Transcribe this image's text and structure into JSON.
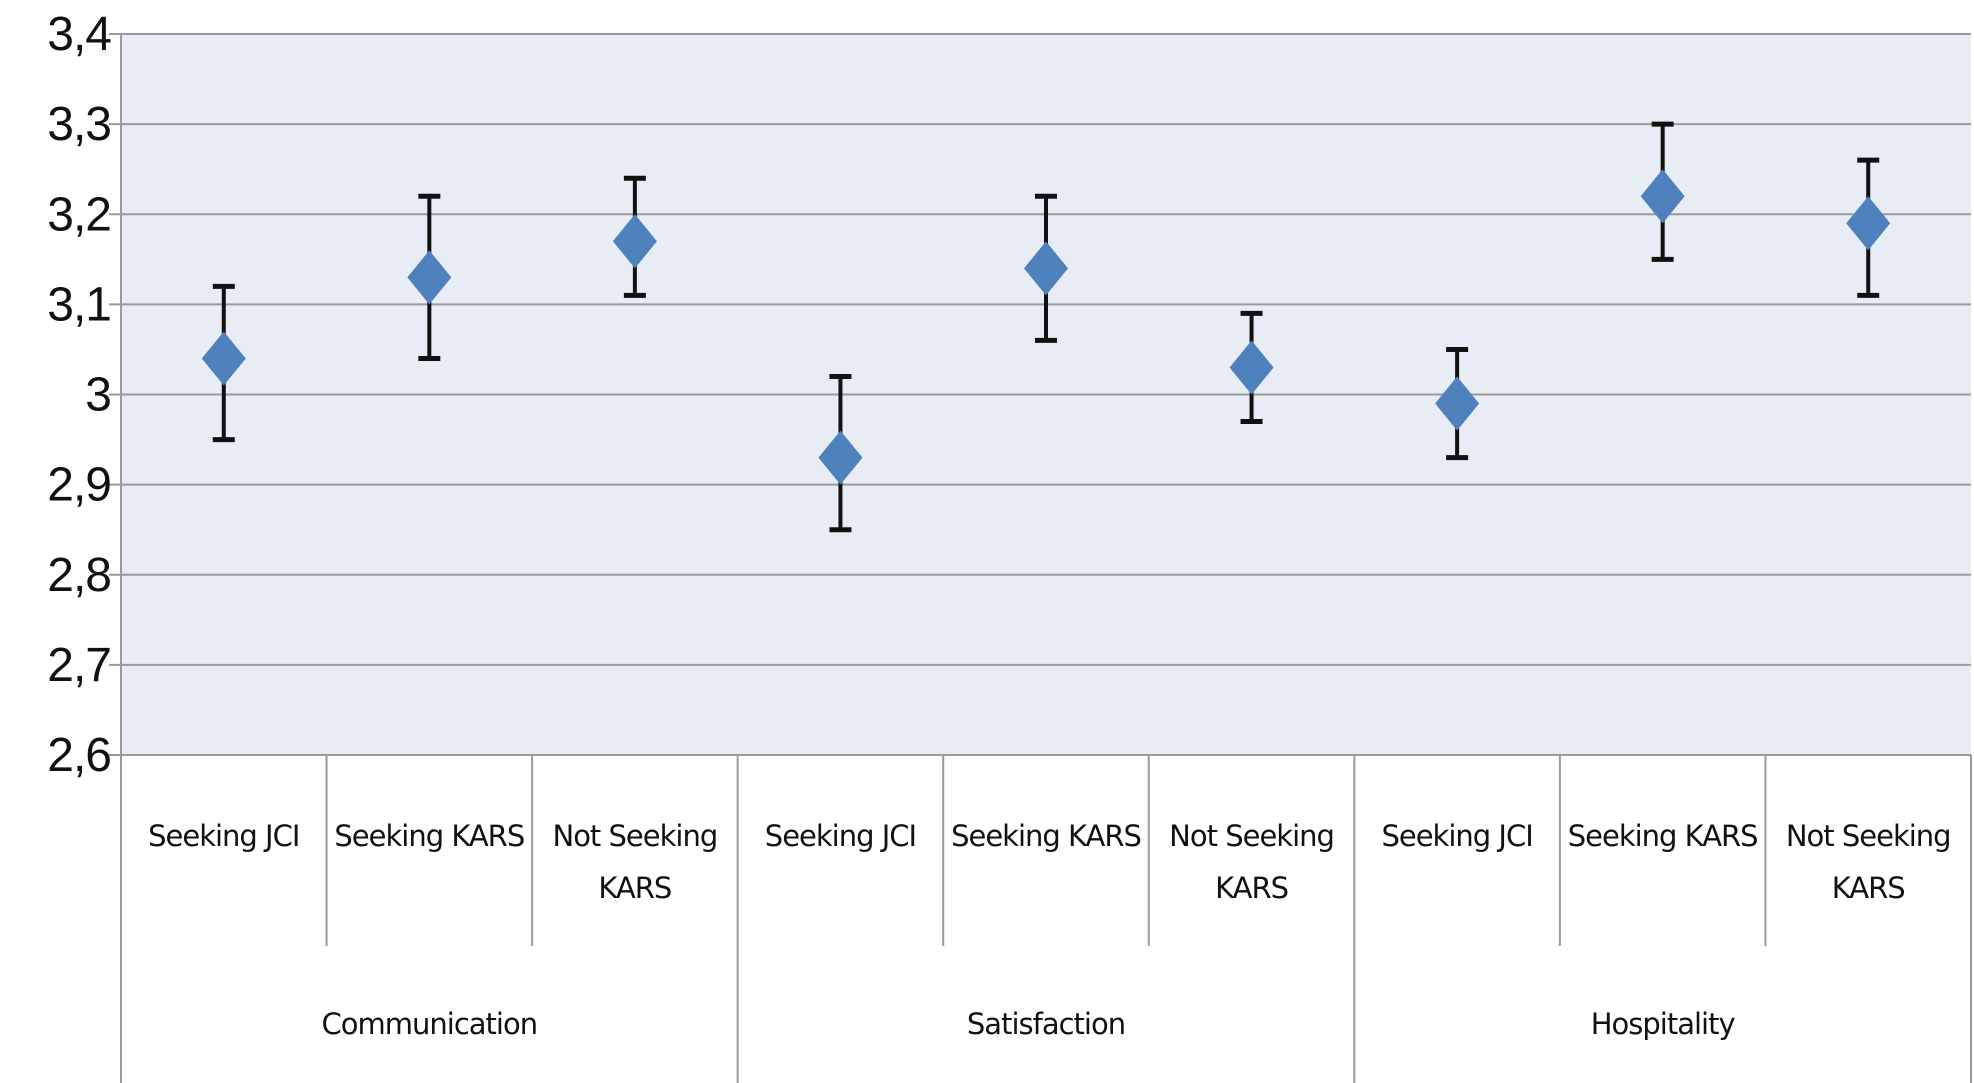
{
  "chart_data": {
    "type": "scatter",
    "subtype": "error-bar markers",
    "title": "",
    "xlabel": "",
    "ylabel": "",
    "ylim": [
      2.6,
      3.4
    ],
    "y_ticks": [
      "2,6",
      "2,7",
      "2,8",
      "2,9",
      "3",
      "3,1",
      "3,2",
      "3,3",
      "3,4"
    ],
    "grid": true,
    "legend": "none",
    "marker": "diamond",
    "colors": {
      "marker": "#4f81bd",
      "plot_bg": "#e8ecf4",
      "gridline": "#9a9a9a",
      "error_bar": "#111111"
    },
    "groups": [
      {
        "name": "Communication",
        "points": [
          {
            "label": "Seeking JCI",
            "value": 3.04,
            "low": 2.95,
            "high": 3.12
          },
          {
            "label": "Seeking KARS",
            "value": 3.13,
            "low": 3.04,
            "high": 3.22
          },
          {
            "label": "Not Seeking KARS",
            "value": 3.17,
            "low": 3.11,
            "high": 3.24
          }
        ]
      },
      {
        "name": "Satisfaction",
        "points": [
          {
            "label": "Seeking JCI",
            "value": 2.93,
            "low": 2.85,
            "high": 3.02
          },
          {
            "label": "Seeking KARS",
            "value": 3.14,
            "low": 3.06,
            "high": 3.22
          },
          {
            "label": "Not Seeking KARS",
            "value": 3.03,
            "low": 2.97,
            "high": 3.09
          }
        ]
      },
      {
        "name": "Hospitality",
        "points": [
          {
            "label": "Seeking JCI",
            "value": 2.99,
            "low": 2.93,
            "high": 3.05
          },
          {
            "label": "Seeking KARS",
            "value": 3.22,
            "low": 3.15,
            "high": 3.3
          },
          {
            "label": "Not Seeking KARS",
            "value": 3.19,
            "low": 3.11,
            "high": 3.26
          }
        ]
      }
    ]
  }
}
